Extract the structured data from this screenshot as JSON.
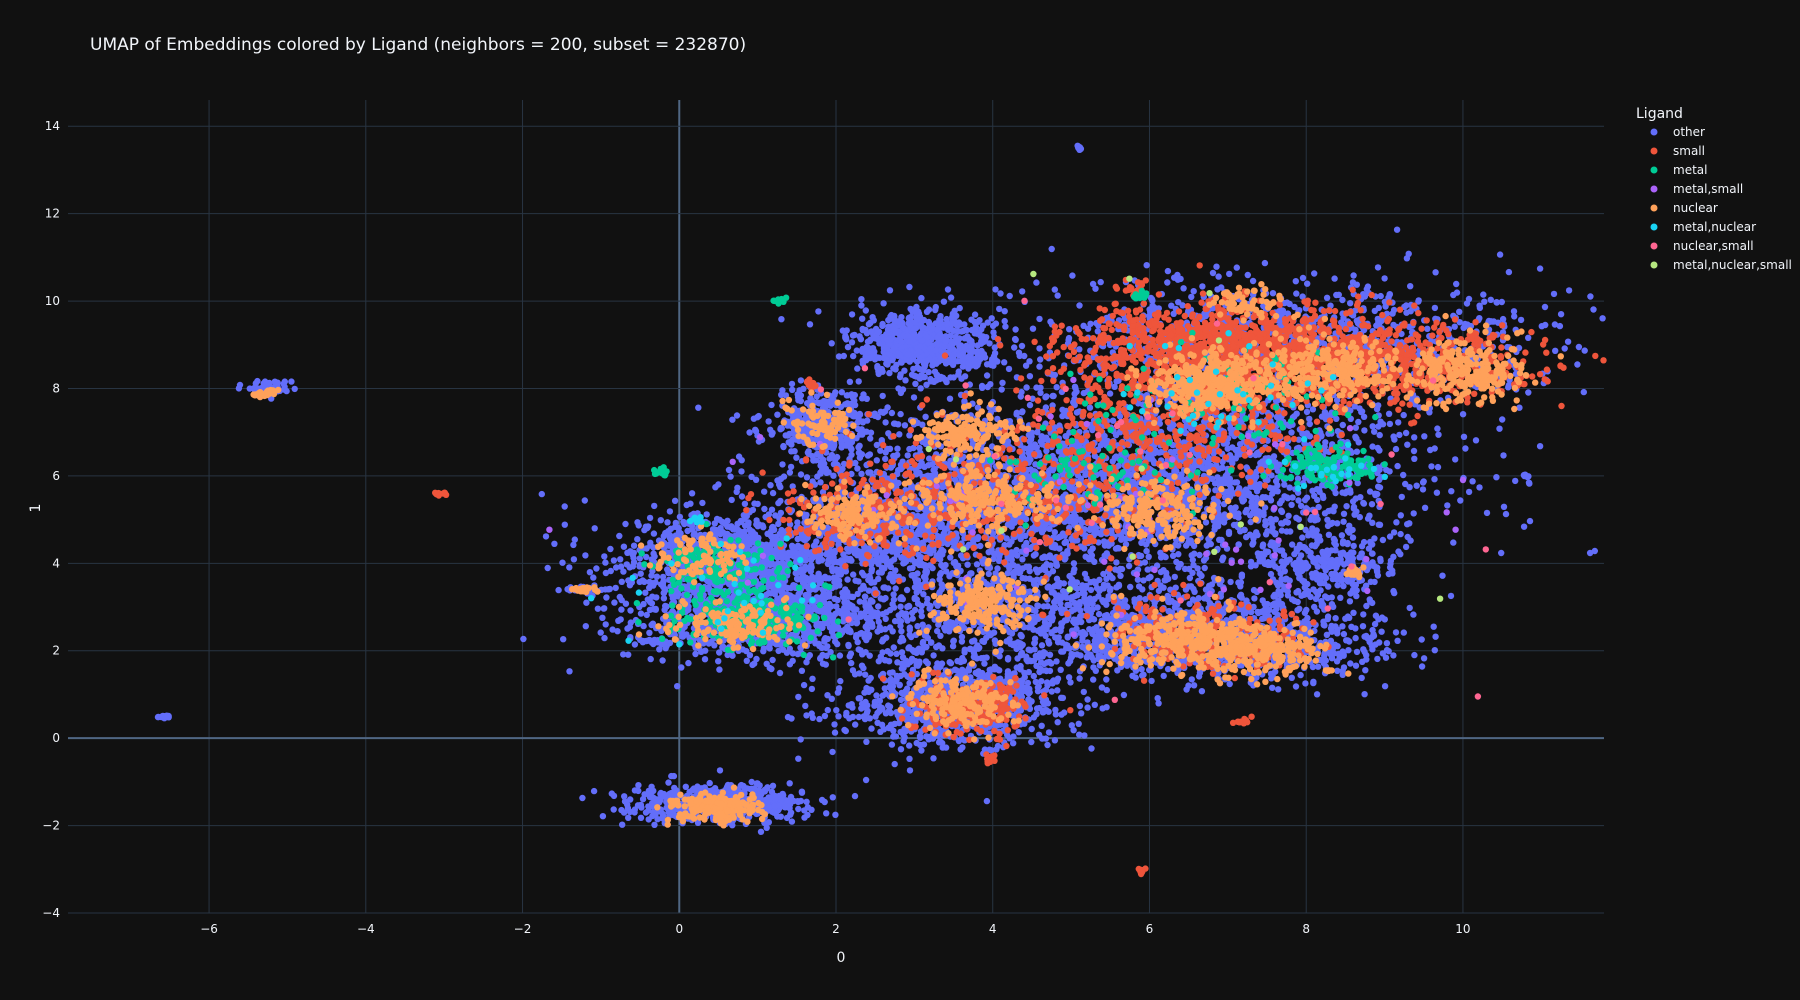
{
  "chart_data": {
    "type": "scatter",
    "title": "UMAP of Embeddings colored by Ligand (neighbors = 200, subset = 232870)",
    "xlabel": "0",
    "ylabel": "1",
    "xlim": [
      -7.8,
      11.8
    ],
    "ylim": [
      -4,
      14.6
    ],
    "x_ticks": [
      -6,
      -4,
      -2,
      0,
      2,
      4,
      6,
      8,
      10
    ],
    "x_tick_labels": [
      "−6",
      "−4",
      "−2",
      "0",
      "2",
      "4",
      "6",
      "8",
      "10"
    ],
    "y_ticks": [
      -4,
      -2,
      0,
      2,
      4,
      6,
      8,
      10,
      12,
      14
    ],
    "y_tick_labels": [
      "−4",
      "−2",
      "0",
      "2",
      "4",
      "6",
      "8",
      "10",
      "12",
      "14"
    ],
    "grid": true,
    "zeroline": true,
    "legend": {
      "title": "Ligand",
      "position": "top-right"
    },
    "background": "#111111",
    "grid_color": "#283442",
    "zeroline_color": "#506784",
    "text_color": "#f2f5fa",
    "series": [
      {
        "name": "other",
        "color": "#636efa",
        "clusters": [
          {
            "cx": -1.4,
            "cy": 6.5,
            "sx": 1.2,
            "sy": 0.3,
            "n": 0
          },
          {
            "cx": 3.1,
            "cy": 9.0,
            "sx": 0.45,
            "sy": 0.4,
            "n": 650
          },
          {
            "cx": 4.3,
            "cy": 5.6,
            "sx": 1.5,
            "sy": 1.1,
            "n": 1700
          },
          {
            "cx": 6.9,
            "cy": 6.3,
            "sx": 1.4,
            "sy": 1.1,
            "n": 1400
          },
          {
            "cx": 7.8,
            "cy": 9.1,
            "sx": 1.7,
            "sy": 0.7,
            "n": 1000
          },
          {
            "cx": 0.7,
            "cy": 4.1,
            "sx": 0.8,
            "sy": 0.55,
            "n": 900
          },
          {
            "cx": 1.0,
            "cy": 2.7,
            "sx": 0.9,
            "sy": 0.45,
            "n": 900
          },
          {
            "cx": 3.5,
            "cy": 0.8,
            "sx": 0.7,
            "sy": 0.5,
            "n": 800
          },
          {
            "cx": 4.5,
            "cy": 2.8,
            "sx": 1.2,
            "sy": 0.7,
            "n": 900
          },
          {
            "cx": 7.0,
            "cy": 2.3,
            "sx": 1.0,
            "sy": 0.5,
            "n": 900
          },
          {
            "cx": 0.5,
            "cy": -1.5,
            "sx": 0.55,
            "sy": 0.2,
            "n": 600
          },
          {
            "cx": 1.8,
            "cy": 7.2,
            "sx": 0.3,
            "sy": 0.4,
            "n": 350
          },
          {
            "cx": 8.2,
            "cy": 4.0,
            "sx": 0.5,
            "sy": 0.5,
            "n": 300
          },
          {
            "cx": 2.7,
            "cy": 4.8,
            "sx": 0.6,
            "sy": 0.6,
            "n": 500
          },
          {
            "cx": -5.2,
            "cy": 8.0,
            "sx": 0.15,
            "sy": 0.08,
            "n": 60
          },
          {
            "cx": -6.6,
            "cy": 0.48,
            "sx": 0.05,
            "sy": 0.03,
            "n": 15
          },
          {
            "cx": 5.1,
            "cy": 13.5,
            "sx": 0.02,
            "sy": 0.03,
            "n": 6
          },
          {
            "cx": 10.8,
            "cy": 6.0,
            "sx": 0.03,
            "sy": 0.02,
            "n": 6
          },
          {
            "cx": -1.2,
            "cy": 3.4,
            "sx": 0.15,
            "sy": 0.05,
            "n": 30
          },
          {
            "cx": -0.3,
            "cy": 2.2,
            "sx": 0.1,
            "sy": 0.04,
            "n": 20
          }
        ]
      },
      {
        "name": "small",
        "color": "#ef553b",
        "clusters": [
          {
            "cx": 6.9,
            "cy": 9.0,
            "sx": 0.9,
            "sy": 0.45,
            "n": 900
          },
          {
            "cx": 8.8,
            "cy": 8.6,
            "sx": 1.0,
            "sy": 0.5,
            "n": 700
          },
          {
            "cx": 6.3,
            "cy": 7.4,
            "sx": 1.0,
            "sy": 0.8,
            "n": 500
          },
          {
            "cx": 4.2,
            "cy": 5.6,
            "sx": 1.2,
            "sy": 0.8,
            "n": 400
          },
          {
            "cx": 3.8,
            "cy": 0.7,
            "sx": 0.4,
            "sy": 0.35,
            "n": 200
          },
          {
            "cx": 6.7,
            "cy": 2.4,
            "sx": 0.7,
            "sy": 0.4,
            "n": 250
          },
          {
            "cx": 2.2,
            "cy": 5.1,
            "sx": 0.5,
            "sy": 0.5,
            "n": 150
          },
          {
            "cx": 5.8,
            "cy": 10.3,
            "sx": 0.1,
            "sy": 0.1,
            "n": 20
          },
          {
            "cx": -3.0,
            "cy": 5.6,
            "sx": 0.05,
            "sy": 0.02,
            "n": 10
          },
          {
            "cx": 5.9,
            "cy": -3.05,
            "sx": 0.02,
            "sy": 0.05,
            "n": 10
          },
          {
            "cx": 7.2,
            "cy": 0.38,
            "sx": 0.06,
            "sy": 0.03,
            "n": 10
          },
          {
            "cx": 3.95,
            "cy": -0.5,
            "sx": 0.04,
            "sy": 0.04,
            "n": 10
          },
          {
            "cx": 10.7,
            "cy": 8.1,
            "sx": 0.05,
            "sy": 0.03,
            "n": 8
          },
          {
            "cx": 1.7,
            "cy": 8.1,
            "sx": 0.05,
            "sy": 0.08,
            "n": 10
          }
        ]
      },
      {
        "name": "metal",
        "color": "#00cc96",
        "clusters": [
          {
            "cx": 0.9,
            "cy": 2.7,
            "sx": 0.5,
            "sy": 0.3,
            "n": 250
          },
          {
            "cx": 0.5,
            "cy": 3.9,
            "sx": 0.4,
            "sy": 0.3,
            "n": 150
          },
          {
            "cx": 8.3,
            "cy": 6.2,
            "sx": 0.3,
            "sy": 0.2,
            "n": 120
          },
          {
            "cx": 5.5,
            "cy": 6.0,
            "sx": 0.8,
            "sy": 0.5,
            "n": 80
          },
          {
            "cx": -0.25,
            "cy": 6.1,
            "sx": 0.06,
            "sy": 0.05,
            "n": 15
          },
          {
            "cx": 1.3,
            "cy": 10.0,
            "sx": 0.05,
            "sy": 0.03,
            "n": 8
          },
          {
            "cx": 5.9,
            "cy": 10.1,
            "sx": 0.06,
            "sy": 0.05,
            "n": 12
          },
          {
            "cx": 7.0,
            "cy": 7.8,
            "sx": 0.8,
            "sy": 0.6,
            "n": 80
          }
        ]
      },
      {
        "name": "metal,small",
        "color": "#ab63fa",
        "clusters": [
          {
            "cx": 5.0,
            "cy": 5.0,
            "sx": 2.0,
            "sy": 1.5,
            "n": 60
          }
        ]
      },
      {
        "name": "nuclear",
        "color": "#ffa15a",
        "clusters": [
          {
            "cx": 6.8,
            "cy": 8.1,
            "sx": 0.4,
            "sy": 0.35,
            "n": 400
          },
          {
            "cx": 8.3,
            "cy": 8.4,
            "sx": 0.5,
            "sy": 0.4,
            "n": 300
          },
          {
            "cx": 10.0,
            "cy": 8.4,
            "sx": 0.4,
            "sy": 0.4,
            "n": 250
          },
          {
            "cx": 3.9,
            "cy": 5.5,
            "sx": 0.5,
            "sy": 0.35,
            "n": 250
          },
          {
            "cx": 3.7,
            "cy": 7.0,
            "sx": 0.3,
            "sy": 0.3,
            "n": 150
          },
          {
            "cx": 6.1,
            "cy": 5.3,
            "sx": 0.4,
            "sy": 0.4,
            "n": 200
          },
          {
            "cx": 6.4,
            "cy": 2.3,
            "sx": 0.5,
            "sy": 0.35,
            "n": 300
          },
          {
            "cx": 7.4,
            "cy": 2.0,
            "sx": 0.4,
            "sy": 0.3,
            "n": 250
          },
          {
            "cx": 3.9,
            "cy": 3.1,
            "sx": 0.3,
            "sy": 0.3,
            "n": 200
          },
          {
            "cx": 3.6,
            "cy": 0.8,
            "sx": 0.35,
            "sy": 0.3,
            "n": 200
          },
          {
            "cx": 0.5,
            "cy": -1.6,
            "sx": 0.3,
            "sy": 0.15,
            "n": 200
          },
          {
            "cx": 2.2,
            "cy": 5.1,
            "sx": 0.3,
            "sy": 0.3,
            "n": 150
          },
          {
            "cx": 0.6,
            "cy": 2.6,
            "sx": 0.4,
            "sy": 0.25,
            "n": 150
          },
          {
            "cx": 0.3,
            "cy": 4.2,
            "sx": 0.3,
            "sy": 0.25,
            "n": 100
          },
          {
            "cx": 1.8,
            "cy": 7.2,
            "sx": 0.2,
            "sy": 0.25,
            "n": 80
          },
          {
            "cx": 7.2,
            "cy": 10.0,
            "sx": 0.25,
            "sy": 0.2,
            "n": 60
          },
          {
            "cx": -1.2,
            "cy": 3.4,
            "sx": 0.1,
            "sy": 0.04,
            "n": 20
          },
          {
            "cx": -5.3,
            "cy": 7.9,
            "sx": 0.1,
            "sy": 0.05,
            "n": 20
          },
          {
            "cx": 8.6,
            "cy": 3.8,
            "sx": 0.1,
            "sy": 0.05,
            "n": 20
          },
          {
            "cx": 8.3,
            "cy": 1.55,
            "sx": 0.04,
            "sy": 0.02,
            "n": 8
          }
        ]
      },
      {
        "name": "metal,nuclear",
        "color": "#19d3f3",
        "clusters": [
          {
            "cx": 0.25,
            "cy": 5.0,
            "sx": 0.05,
            "sy": 0.05,
            "n": 10
          },
          {
            "cx": 6.8,
            "cy": 7.8,
            "sx": 0.8,
            "sy": 0.6,
            "n": 40
          },
          {
            "cx": 0.5,
            "cy": 3.5,
            "sx": 0.6,
            "sy": 0.8,
            "n": 30
          },
          {
            "cx": 8.4,
            "cy": 6.1,
            "sx": 0.3,
            "sy": 0.2,
            "n": 20
          }
        ]
      },
      {
        "name": "nuclear,small",
        "color": "#ff6692",
        "clusters": [
          {
            "cx": 6.5,
            "cy": 6.0,
            "sx": 2.0,
            "sy": 2.0,
            "n": 40
          }
        ]
      },
      {
        "name": "metal,nuclear,small",
        "color": "#b6e880",
        "clusters": [
          {
            "cx": 6.0,
            "cy": 6.0,
            "sx": 2.0,
            "sy": 2.0,
            "n": 15
          }
        ]
      }
    ]
  }
}
